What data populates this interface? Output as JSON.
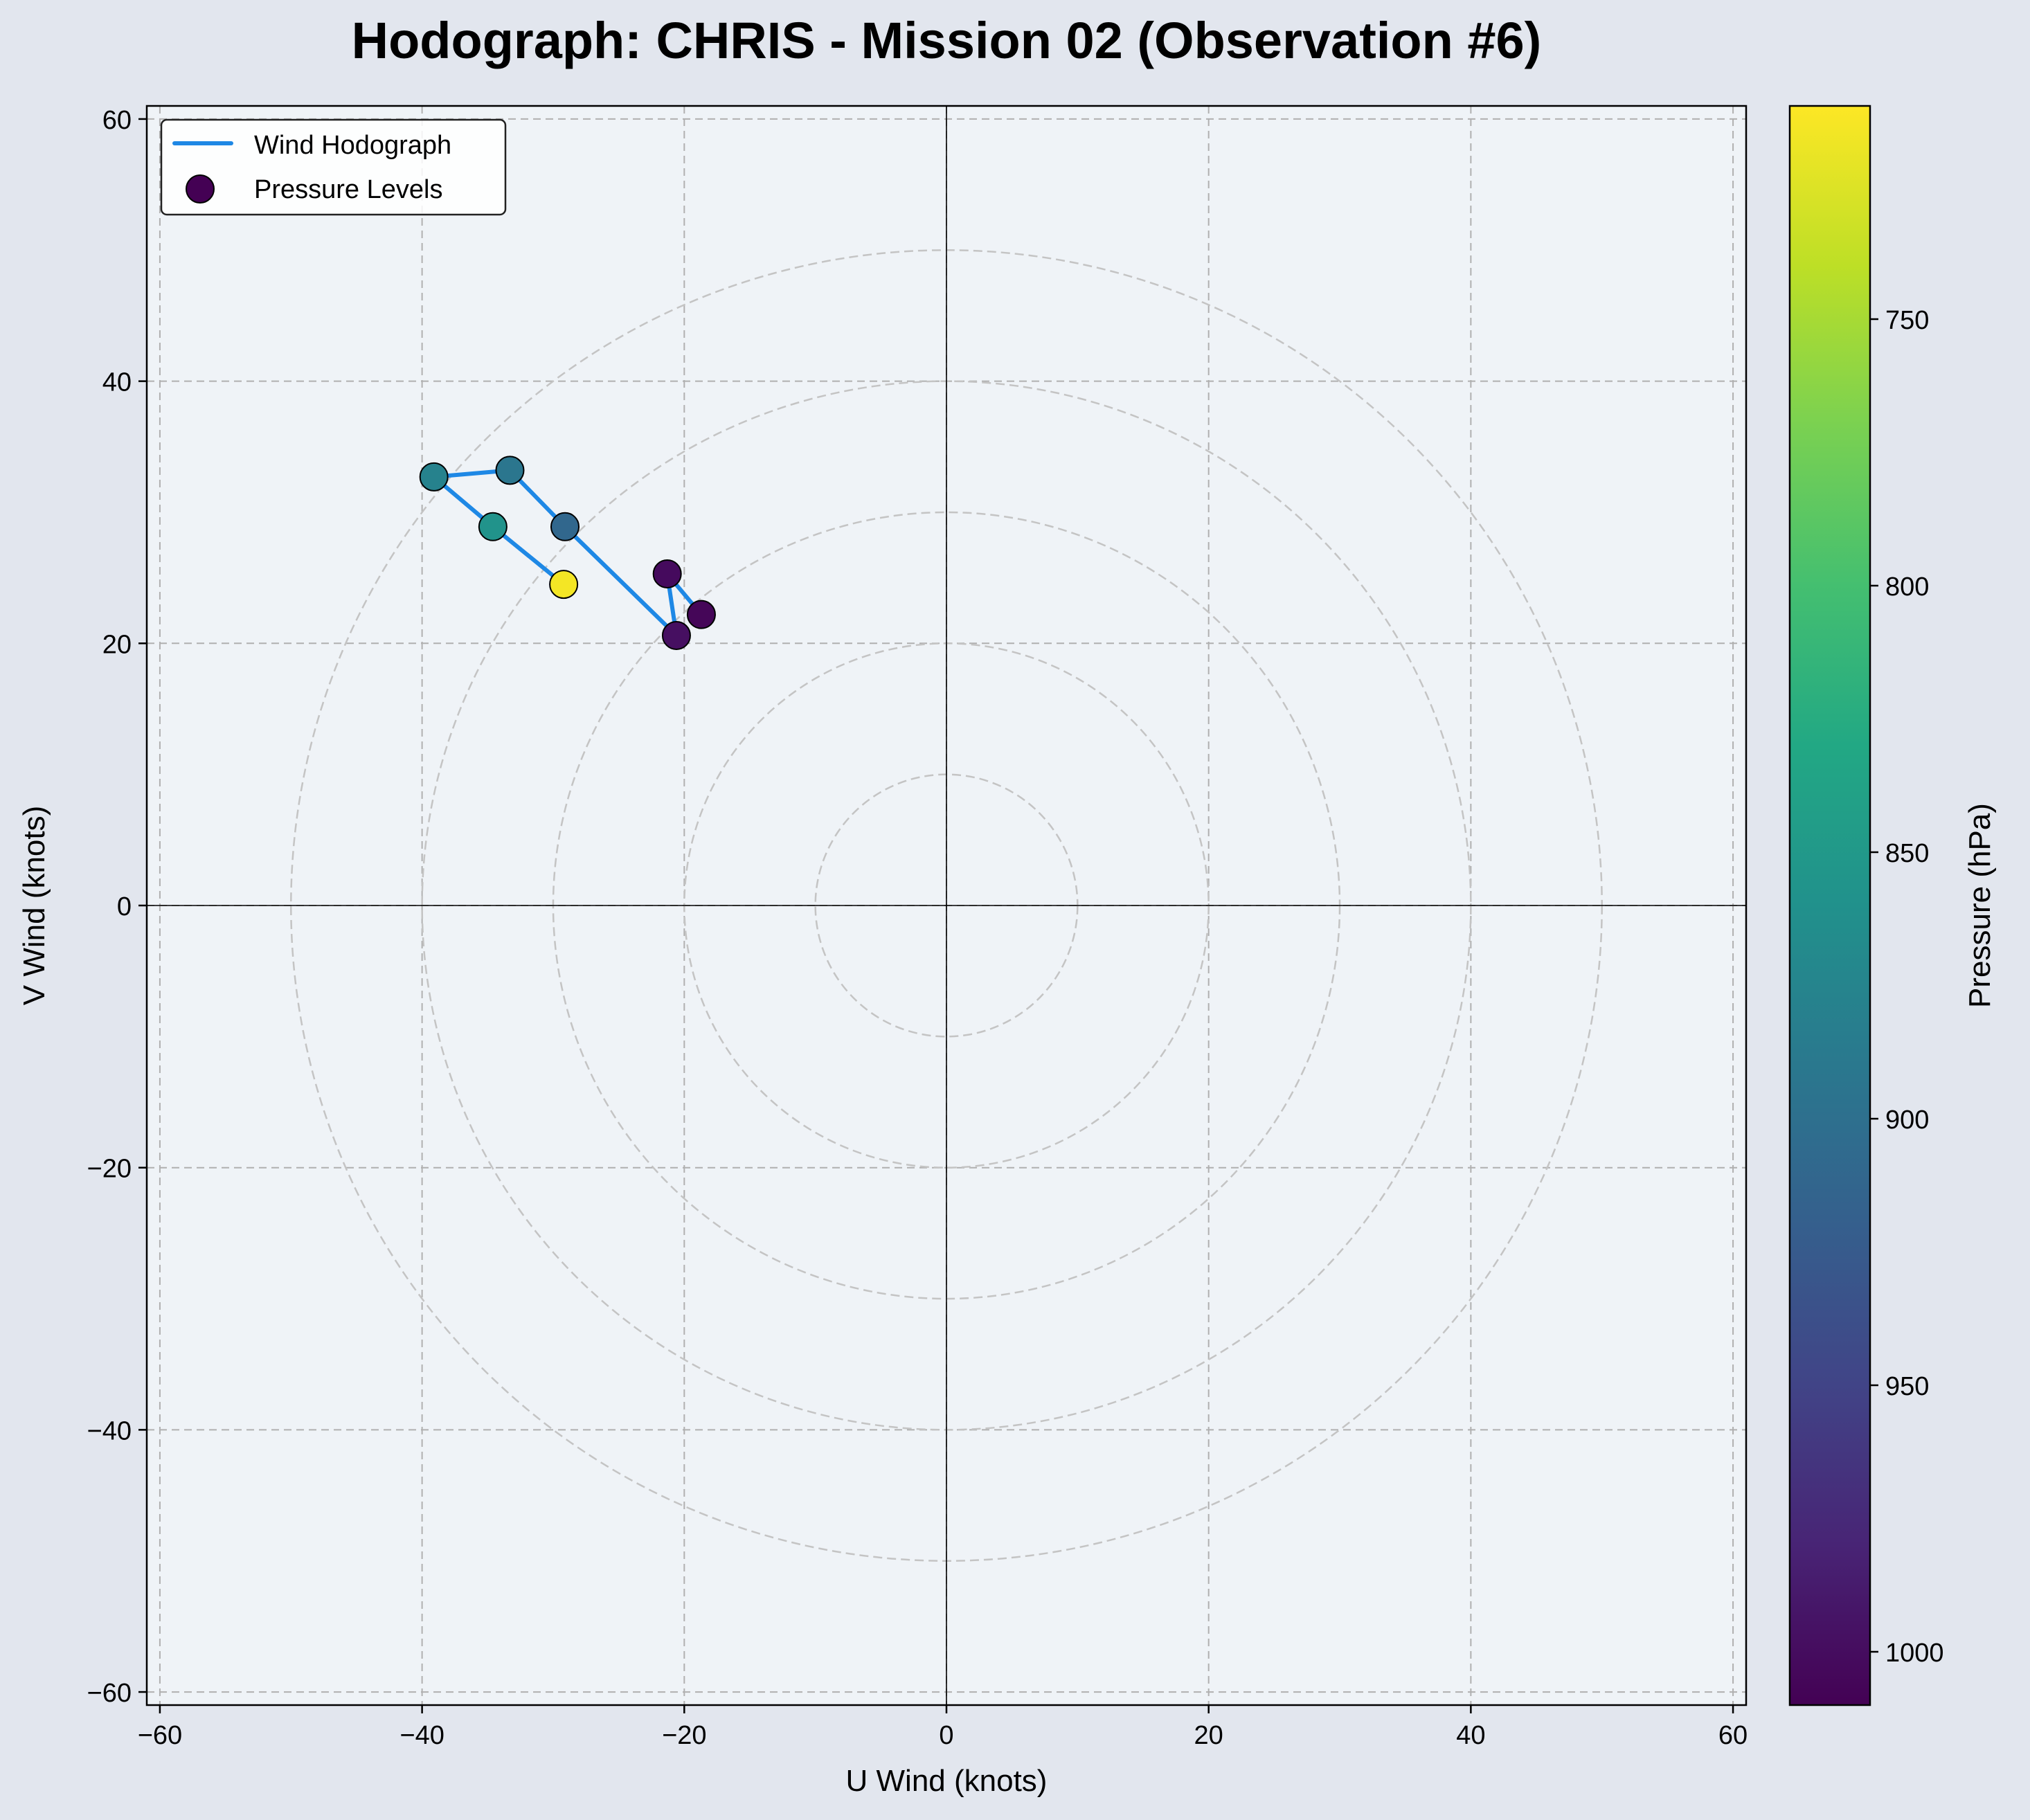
{
  "chart_data": {
    "type": "scatter",
    "title": "Hodograph: CHRIS - Mission 02 (Observation #6)",
    "xlabel": "U Wind (knots)",
    "ylabel": "V Wind (knots)",
    "xlim": [
      -61,
      61
    ],
    "ylim": [
      -61,
      61
    ],
    "xticks": [
      -60,
      -40,
      -20,
      0,
      20,
      40,
      60
    ],
    "yticks": [
      -60,
      -40,
      -20,
      0,
      20,
      40,
      60
    ],
    "xtick_labels": [
      "−60",
      "−40",
      "−20",
      "0",
      "20",
      "40",
      "60"
    ],
    "ytick_labels": [
      "−60",
      "−40",
      "−20",
      "0",
      "20",
      "40",
      "60"
    ],
    "grid": true,
    "range_rings": [
      10,
      20,
      30,
      40,
      50
    ],
    "legend": {
      "placement": "top-left",
      "line_label": "Wind Hodograph",
      "points_label": "Pressure Levels"
    },
    "hodograph_color": "#1e88e5",
    "points": [
      {
        "u": -18.7,
        "v": 22.2,
        "pressure": 1006
      },
      {
        "u": -21.3,
        "v": 25.3,
        "pressure": 1002
      },
      {
        "u": -20.6,
        "v": 20.6,
        "pressure": 998
      },
      {
        "u": -29.1,
        "v": 28.9,
        "pressure": 910
      },
      {
        "u": -33.3,
        "v": 33.2,
        "pressure": 892
      },
      {
        "u": -39.1,
        "v": 32.7,
        "pressure": 878
      },
      {
        "u": -34.6,
        "v": 28.9,
        "pressure": 858
      },
      {
        "u": -29.2,
        "v": 24.5,
        "pressure": 714
      }
    ],
    "colorbar": {
      "label": "Pressure (hPa)",
      "cmap": "viridis",
      "inverted": true,
      "range": [
        1010,
        710
      ],
      "ticks": [
        750,
        800,
        850,
        900,
        950,
        1000
      ],
      "tick_labels": [
        "750",
        "800",
        "850",
        "900",
        "950",
        "1000"
      ]
    }
  }
}
